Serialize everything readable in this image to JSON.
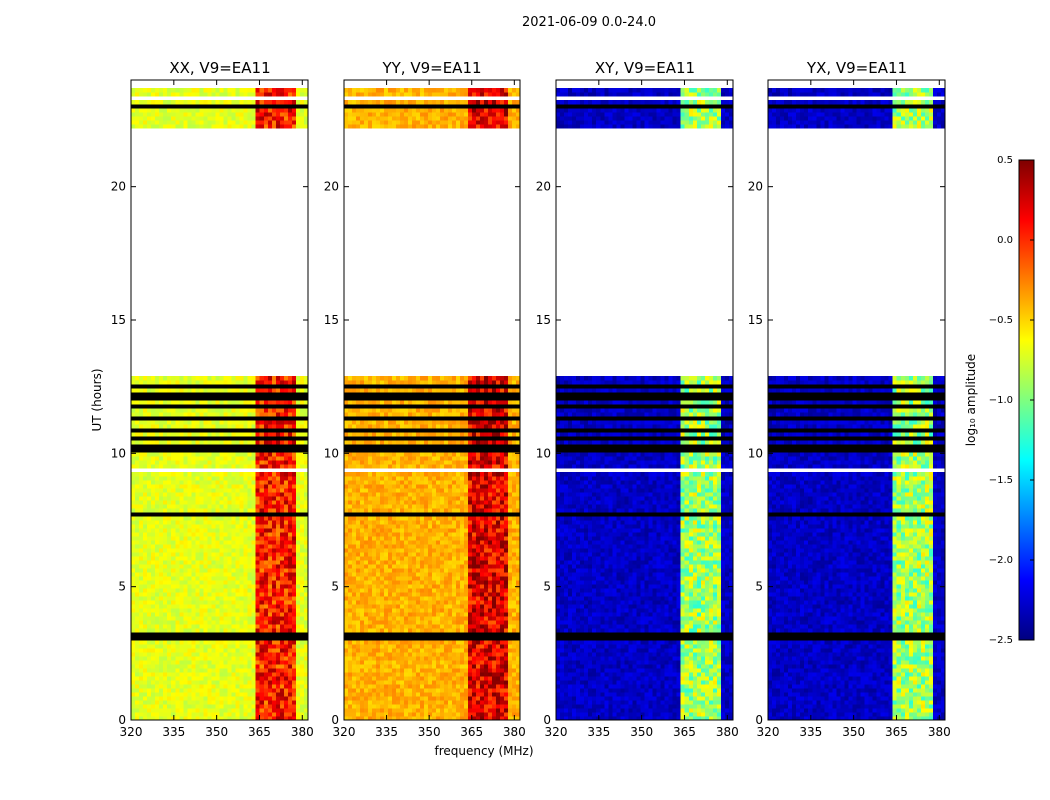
{
  "figure_title": "2021-06-09 0.0-24.0",
  "colormap": [
    "#00007f",
    "#0000ff",
    "#007fff",
    "#00ffff",
    "#7fff7f",
    "#ffff00",
    "#ff7f00",
    "#ff0000",
    "#7f0000"
  ],
  "colors": {
    "flagged": "#000000",
    "nodata": "#ffffff"
  },
  "chart_data": {
    "type": "heatmap",
    "xlabel": "frequency (MHz)",
    "ylabel": "UT (hours)",
    "xlim": [
      320,
      382
    ],
    "ylim": [
      0,
      24
    ],
    "xticks": [
      320,
      335,
      350,
      365,
      380
    ],
    "yticks": [
      0,
      5,
      10,
      15,
      20
    ],
    "xtick_labels": [
      "320",
      "335",
      "350",
      "365",
      "380"
    ],
    "ytick_labels": [
      "0",
      "5",
      "10",
      "15",
      "20"
    ],
    "colorbar": {
      "label": "log₁₀ amplitude",
      "range": [
        -2.5,
        0.5
      ],
      "ticks": [
        -2.5,
        -2.0,
        -1.5,
        -1.0,
        -0.5,
        0.0,
        0.5
      ],
      "tick_labels": [
        "−2.5",
        "−2.0",
        "−1.5",
        "−1.0",
        "−0.5",
        "0.0",
        "0.5"
      ]
    },
    "data_ranges_hours": [
      [
        0,
        12.85
      ],
      [
        22.2,
        24
      ]
    ],
    "flagged_rows_hours": [
      [
        3.05,
        3.25
      ],
      [
        7.6,
        7.85
      ],
      [
        10.1,
        10.3
      ],
      [
        10.45,
        10.7
      ],
      [
        10.85,
        10.95
      ],
      [
        11.2,
        11.35
      ],
      [
        11.7,
        11.8
      ],
      [
        12.05,
        12.25
      ],
      [
        12.45,
        12.55
      ],
      [
        23.0,
        23.1
      ],
      [
        23.55,
        23.6
      ]
    ],
    "empty_rows_hours": [
      [
        9.3,
        9.45
      ],
      [
        12.85,
        22.2
      ],
      [
        23.3,
        23.42
      ],
      [
        23.75,
        24.0
      ]
    ],
    "rfi_band_mhz": [
      363,
      378
    ],
    "panels": [
      {
        "title": "XX, V9=EA11",
        "base_level": -0.7,
        "band_level": 0.05
      },
      {
        "title": "YY, V9=EA11",
        "base_level": -0.4,
        "band_level": 0.2
      },
      {
        "title": "XY, V9=EA11",
        "base_level": -2.3,
        "band_level": -0.9
      },
      {
        "title": "YX, V9=EA11",
        "base_level": -2.3,
        "band_level": -0.9
      }
    ]
  }
}
